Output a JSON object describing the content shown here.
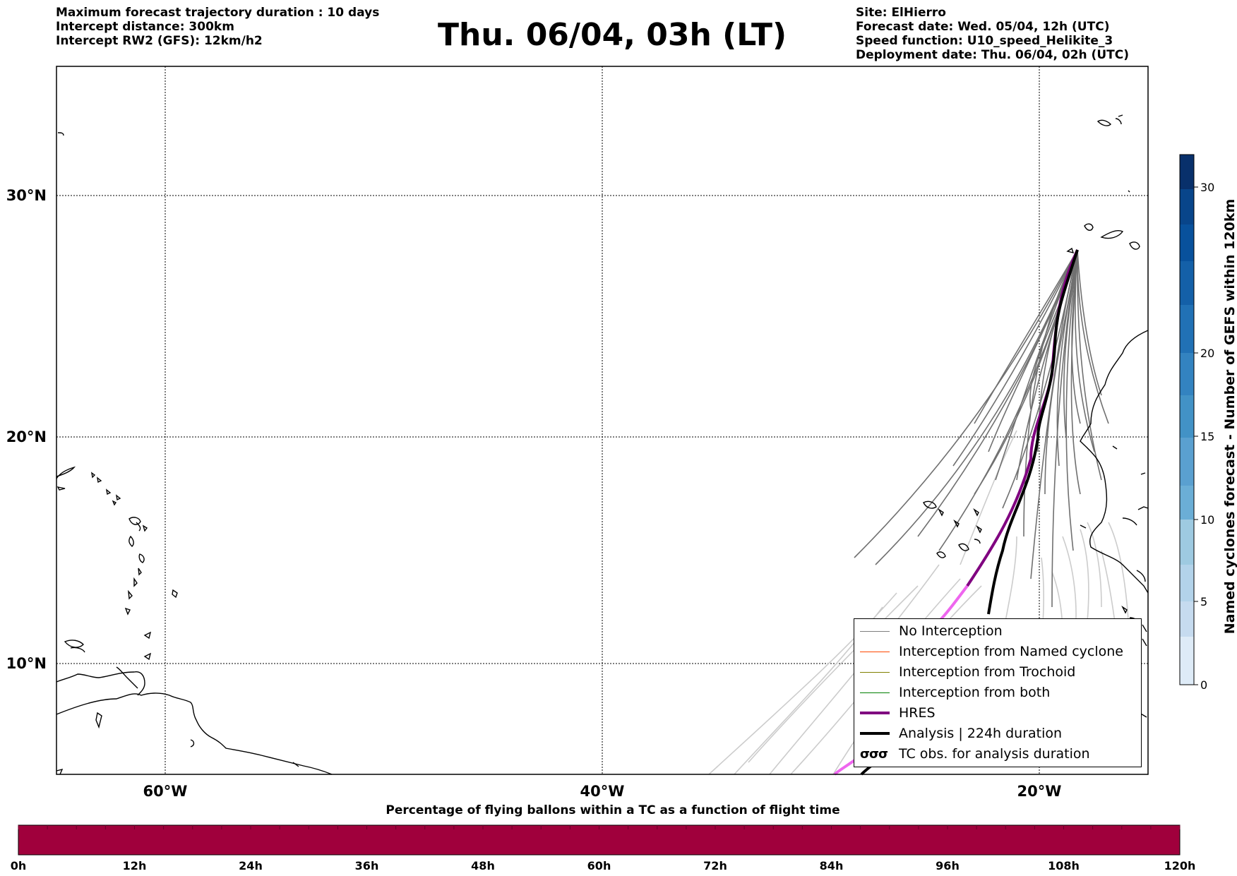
{
  "header_left": [
    "Maximum forecast trajectory duration : 10 days",
    "Intercept distance: 300km",
    "Intercept RW2 (GFS):  12km/h2"
  ],
  "title": "Thu. 06/04, 03h (LT)",
  "header_right": [
    "Site: ElHierro",
    "Forecast date: Wed. 05/04, 12h (UTC)",
    "Speed function: U10_speed_Helikite_3",
    "Deployment date: Thu. 06/04, 02h (UTC)"
  ],
  "map": {
    "lat_labels": [
      "30°N",
      "20°N",
      "10°N"
    ],
    "lon_labels": [
      "60°W",
      "40°W",
      "20°W"
    ]
  },
  "legend": [
    {
      "label": "No Interception",
      "color": "#7f7f7f",
      "width": 1.2
    },
    {
      "label": "Interception from Named cyclone",
      "color": "#ff4500",
      "width": 1.2
    },
    {
      "label": "Interception from Trochoid",
      "color": "#808000",
      "width": 1.2
    },
    {
      "label": "Interception from both",
      "color": "#008000",
      "width": 1.2
    },
    {
      "label": "HRES",
      "color": "#800080",
      "width": 4
    },
    {
      "label": "Analysis | 224h duration",
      "color": "#000000",
      "width": 4
    },
    {
      "label": "TC obs. for analysis duration",
      "color": "#000000",
      "width": 0,
      "icon": "cyclone-symbols-icon"
    }
  ],
  "colorbar": {
    "label": "Named cyclones forecast - Number of GEFS within 120km",
    "ticks": [
      "0",
      "5",
      "10",
      "15",
      "20",
      "30"
    ],
    "colors": [
      "#deebf7",
      "#c6dbef",
      "#9ecae1",
      "#6baed6",
      "#4292c6",
      "#2171b5",
      "#08519c",
      "#08306b"
    ]
  },
  "bottom_bar": {
    "title": "Percentage of flying ballons within a TC as a function of flight time",
    "ticks": [
      "0h",
      "12h",
      "24h",
      "36h",
      "48h",
      "60h",
      "72h",
      "84h",
      "96h",
      "108h",
      "120h"
    ],
    "color": "#a0003c"
  }
}
